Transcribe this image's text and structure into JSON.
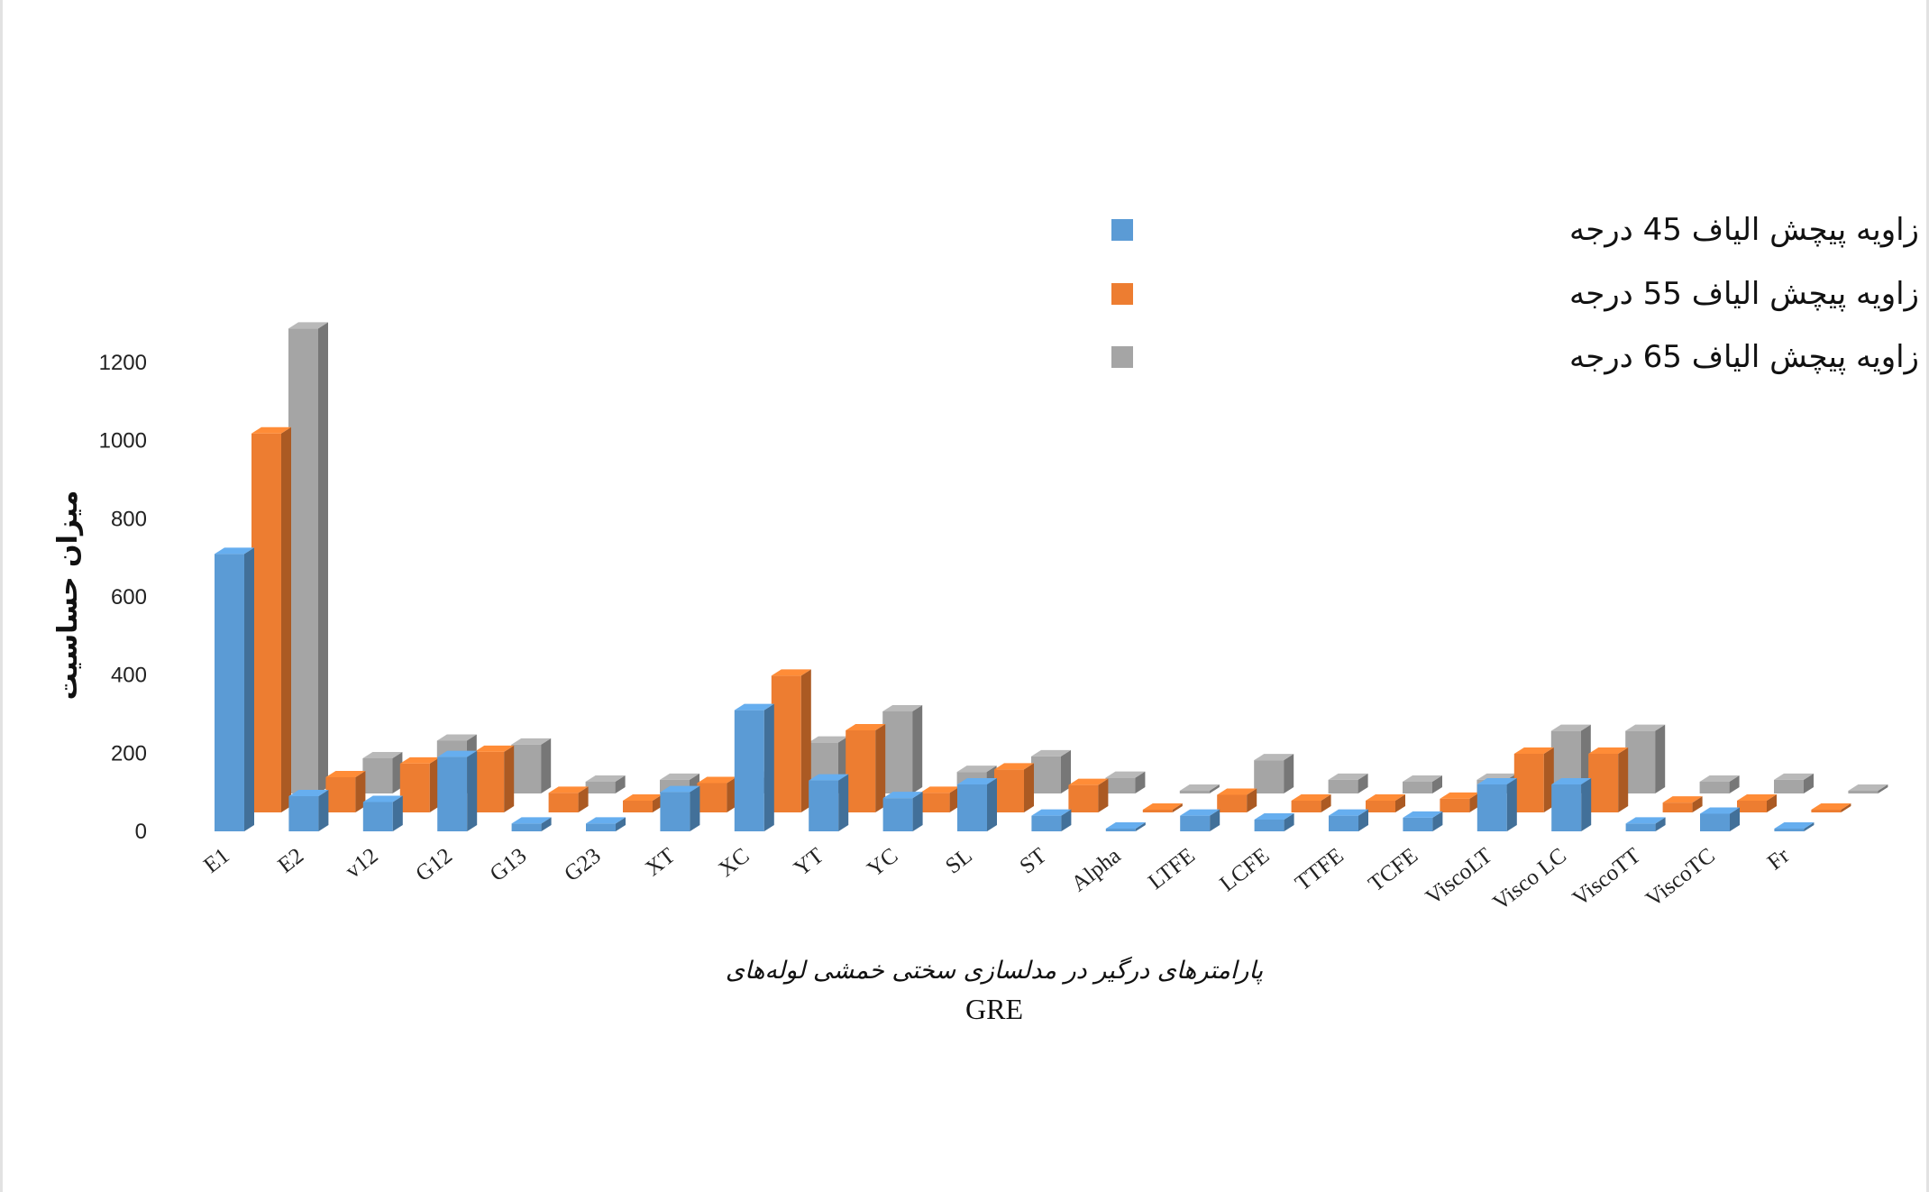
{
  "chart_data": {
    "type": "bar",
    "style": "3d-clustered-column",
    "title": "",
    "ylabel": "میزان حساسیت",
    "xlabel": "پارامترهای درگیر در مدلسازی سختی خمشی لوله‌های",
    "xlabel_line2": "GRE",
    "ylim": [
      0,
      1200
    ],
    "yticks": [
      0,
      200,
      400,
      600,
      800,
      1000,
      1200
    ],
    "grid": false,
    "legend_position": "top-right",
    "categories": [
      "E1",
      "E2",
      "v12",
      "G12",
      "G13",
      "G23",
      "XT",
      "XC",
      "YT",
      "YC",
      "SL",
      "ST",
      "Alpha",
      "LTFE",
      "LCFE",
      "TTFE",
      "TCFE",
      "ViscoLT",
      "Visco LC",
      "ViscoTT",
      "ViscoTC",
      "Fr"
    ],
    "series": [
      {
        "name": "نمونه با زاویه پیچش الیاف 45 درجه",
        "color": "#5B9BD5",
        "values": [
          710,
          90,
          75,
          190,
          20,
          20,
          100,
          310,
          130,
          85,
          120,
          40,
          5,
          40,
          30,
          40,
          35,
          120,
          120,
          20,
          45,
          5
        ]
      },
      {
        "name": "نمونه با زاویه پیچش الیاف 55 درجه",
        "color": "#ED7D31",
        "values": [
          970,
          90,
          125,
          155,
          50,
          30,
          75,
          350,
          210,
          50,
          110,
          70,
          5,
          45,
          30,
          30,
          35,
          150,
          150,
          25,
          30,
          5
        ]
      },
      {
        "name": "نمونه با زاویه پیچش الیاف 65 درجه",
        "color": "#A5A5A5",
        "values": [
          1190,
          90,
          135,
          125,
          30,
          35,
          40,
          130,
          210,
          55,
          95,
          40,
          5,
          85,
          35,
          30,
          35,
          160,
          160,
          30,
          35,
          5
        ]
      }
    ]
  }
}
